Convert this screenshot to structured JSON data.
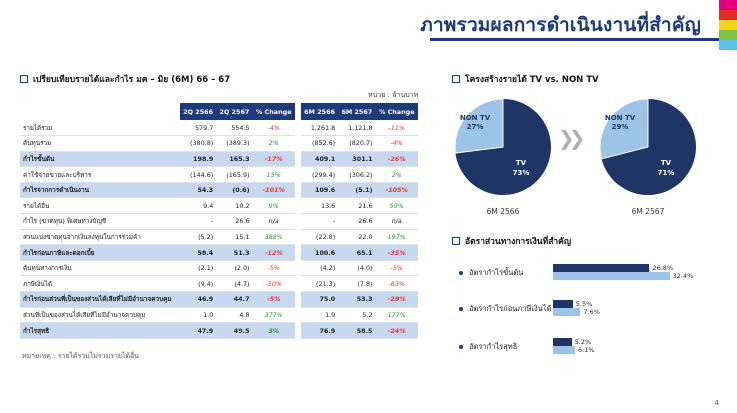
{
  "title": "ภาพรวมผลการดำเนินงานที่สำคัญ",
  "stripe_colors": [
    "#e6007e",
    "#e32b2b",
    "#f7d417",
    "#7dc242",
    "#5bc3e8"
  ],
  "table_section": {
    "heading": "เปรียบเทียบรายได้และกำไร มค – มิย (6M) 66 – 67",
    "unit": "หน่วย : ล้านบาท",
    "columns": [
      "2Q 2566",
      "2Q 2567",
      "% Change",
      "6M 2566",
      "6M 2567",
      "% Change"
    ],
    "rows": [
      {
        "label": "รายได้รวม",
        "v": [
          "579.7",
          "554.5",
          "-4%",
          "1,261.8",
          "1,121.8",
          "-11%"
        ],
        "hl": false
      },
      {
        "label": "ต้นทุนรวม",
        "v": [
          "(380.8)",
          "(389.3)",
          "2%",
          "(852.6)",
          "(820.7)",
          "-4%"
        ],
        "hl": false
      },
      {
        "label": "กำไรขั้นต้น",
        "v": [
          "198.9",
          "165.3",
          "-17%",
          "409.1",
          "301.1",
          "-26%"
        ],
        "hl": true
      },
      {
        "label": "ค่าใช้จ่ายขายและบริหาร",
        "v": [
          "(144.6)",
          "(165.9)",
          "15%",
          "(299.4)",
          "(306.2)",
          "2%"
        ],
        "hl": false
      },
      {
        "label": "กำไรจากการดำเนินงาน",
        "v": [
          "54.3",
          "(0.6)",
          "-101%",
          "109.6",
          "(5.1)",
          "-105%"
        ],
        "hl": true
      },
      {
        "label": "รายได้อื่น",
        "v": [
          "9.4",
          "10.2",
          "9%",
          "13.6",
          "21.6",
          "59%"
        ],
        "hl": false
      },
      {
        "label": "กำไร (ขาดทุน) พิเศษทางบัญชี",
        "v": [
          "-",
          "26.6",
          "n/a",
          "-",
          "26.6",
          "n/a"
        ],
        "hl": false
      },
      {
        "label": "ส่วนแบ่งขาดทุนจากเงินลงทุนในการร่วมค้า",
        "v": [
          "(5.2)",
          "15.1",
          "388%",
          "(22.8)",
          "22.0",
          "197%"
        ],
        "hl": false
      },
      {
        "label": "กำไรก่อนภาษีและดอกเบี้ย",
        "v": [
          "58.4",
          "51.3",
          "-12%",
          "100.6",
          "65.1",
          "-35%"
        ],
        "hl": true
      },
      {
        "label": "ต้นทุนทางการเงิน",
        "v": [
          "(2.1)",
          "(2.0)",
          "-5%",
          "(4.2)",
          "(4.0)",
          "-5%"
        ],
        "hl": false
      },
      {
        "label": "ภาษีเงินได้",
        "v": [
          "(9.4)",
          "(4.7)",
          "-50%",
          "(21.3)",
          "(7.8)",
          "-63%"
        ],
        "hl": false
      },
      {
        "label": "กำไรก่อนส่วนที่เป็นของส่วนได้เสียที่ไม่มีอำนาจควบคุม",
        "v": [
          "46.9",
          "44.7",
          "-5%",
          "75.0",
          "53.3",
          "-29%"
        ],
        "hl": true
      },
      {
        "label": "ส่วนที่เป็นของส่วนได้เสียที่ไม่มีอำนาจควบคุม",
        "v": [
          "1.0",
          "4.8",
          "377%",
          "1.9",
          "5.2",
          "177%"
        ],
        "hl": false
      },
      {
        "label": "กำไรสุทธิ",
        "v": [
          "47.9",
          "49.5",
          "3%",
          "76.9",
          "58.5",
          "-24%"
        ],
        "hl": true
      }
    ],
    "note": "หมายเหตุ : รายได้รวมไม่รวมรายได้อื่น"
  },
  "revenue_structure": {
    "heading": "โครงสร้างรายได้ TV vs. NON TV",
    "colors": {
      "tv": "#1f3566",
      "non_tv": "#9dc3e6"
    },
    "pies": [
      {
        "year": "6M 2566",
        "tv_pct": 73,
        "non_tv_pct": 27,
        "tv_label": "TV",
        "tv_value": "73%",
        "non_tv_label": "NON TV",
        "non_tv_value": "27%"
      },
      {
        "year": "6M 2567",
        "tv_pct": 71,
        "non_tv_pct": 29,
        "tv_label": "TV",
        "tv_value": "71%",
        "non_tv_label": "NON TV",
        "non_tv_value": "29%"
      }
    ]
  },
  "ratios": {
    "heading": "อัตราส่วนทางการเงินที่สำคัญ",
    "items": [
      {
        "label": "อัตรากำไรขั้นต้น",
        "dark_value": 26.8,
        "dark_text": "26.8%",
        "light_value": 32.4,
        "light_text": "32.4%"
      },
      {
        "label": "อัตรากำไรก่อนภาษีเงินได้",
        "dark_value": 5.5,
        "dark_text": "5.5%",
        "light_value": 7.6,
        "light_text": "7.6%"
      },
      {
        "label": "อัตรากำไรสุทธิ",
        "dark_value": 5.2,
        "dark_text": "5.2%",
        "light_value": 6.1,
        "light_text": "6.1%"
      }
    ]
  },
  "page_number": "4"
}
